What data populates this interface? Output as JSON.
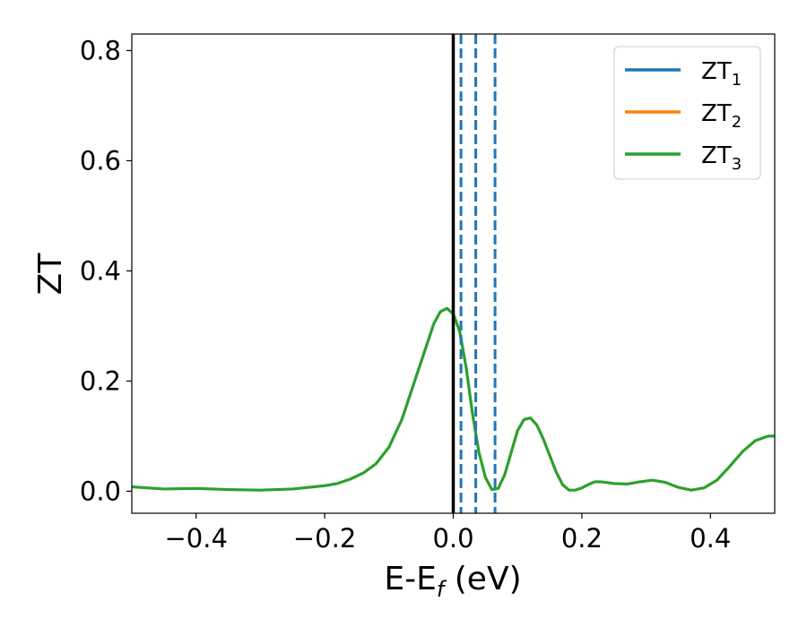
{
  "chart_data": {
    "type": "line",
    "xlabel": "E-E",
    "xlabel_sub": "f",
    "xlabel_unit": " (eV)",
    "ylabel": "ZT",
    "xlim": [
      -0.5,
      0.5
    ],
    "ylim": [
      -0.04,
      0.83
    ],
    "x_ticks": [
      -0.4,
      -0.2,
      0.0,
      0.2,
      0.4
    ],
    "x_tick_labels": [
      "−0.4",
      "−0.2",
      "0.0",
      "0.2",
      "0.4"
    ],
    "y_ticks": [
      0.0,
      0.2,
      0.4,
      0.6,
      0.8
    ],
    "y_tick_labels": [
      "0.0",
      "0.2",
      "0.4",
      "0.6",
      "0.8"
    ],
    "grid": false,
    "legend_position": "top-right",
    "legend": [
      {
        "base": "ZT",
        "sub": "1",
        "color": "#1f77b4"
      },
      {
        "base": "ZT",
        "sub": "2",
        "color": "#ff7f0e"
      },
      {
        "base": "ZT",
        "sub": "3",
        "color": "#2ca02c"
      }
    ],
    "series": [
      {
        "color": "#2ca02c",
        "x": [
          -0.5,
          -0.45,
          -0.4,
          -0.35,
          -0.3,
          -0.25,
          -0.2,
          -0.18,
          -0.16,
          -0.14,
          -0.12,
          -0.1,
          -0.08,
          -0.06,
          -0.04,
          -0.03,
          -0.02,
          -0.01,
          0.0,
          0.01,
          0.02,
          0.03,
          0.04,
          0.05,
          0.06,
          0.07,
          0.08,
          0.09,
          0.1,
          0.11,
          0.12,
          0.13,
          0.14,
          0.15,
          0.16,
          0.17,
          0.18,
          0.19,
          0.2,
          0.21,
          0.22,
          0.23,
          0.25,
          0.27,
          0.29,
          0.31,
          0.33,
          0.35,
          0.37,
          0.39,
          0.41,
          0.43,
          0.45,
          0.47,
          0.49,
          0.5
        ],
        "y": [
          0.008,
          0.004,
          0.005,
          0.003,
          0.002,
          0.004,
          0.01,
          0.014,
          0.022,
          0.033,
          0.05,
          0.08,
          0.13,
          0.2,
          0.27,
          0.305,
          0.326,
          0.332,
          0.322,
          0.29,
          0.225,
          0.14,
          0.07,
          0.025,
          0.003,
          0.005,
          0.03,
          0.07,
          0.11,
          0.13,
          0.133,
          0.12,
          0.095,
          0.065,
          0.035,
          0.012,
          0.002,
          0.002,
          0.006,
          0.012,
          0.017,
          0.017,
          0.014,
          0.013,
          0.017,
          0.02,
          0.016,
          0.007,
          0.002,
          0.006,
          0.02,
          0.045,
          0.072,
          0.092,
          0.1,
          0.1
        ]
      }
    ],
    "vlines": [
      {
        "x": 0.0,
        "style": "solid",
        "color": "#000000"
      },
      {
        "x": 0.012,
        "style": "dashed",
        "color": "#1f77b4"
      },
      {
        "x": 0.035,
        "style": "dashed",
        "color": "#1f77b4"
      },
      {
        "x": 0.065,
        "style": "dashed",
        "color": "#1f77b4"
      }
    ]
  }
}
